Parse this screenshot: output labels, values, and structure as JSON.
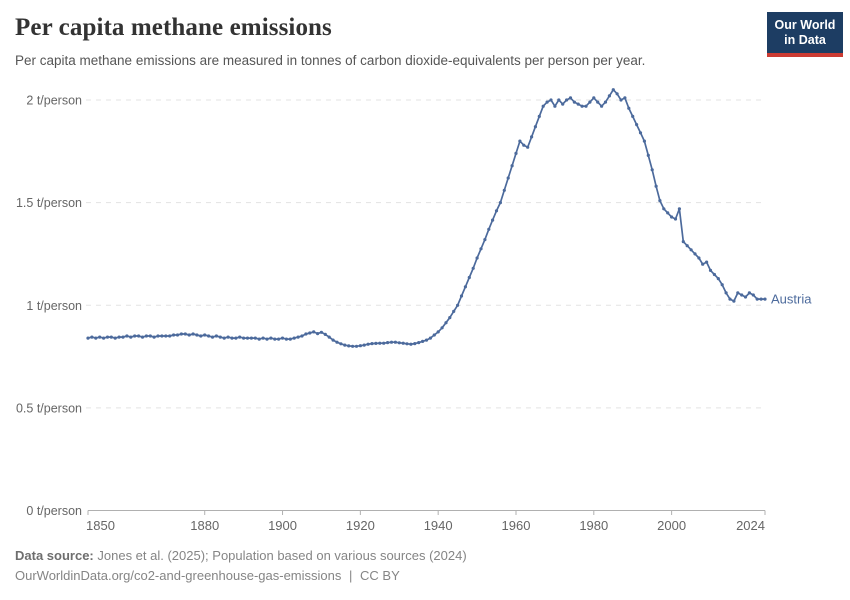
{
  "header": {
    "title": "Per capita methane emissions",
    "subtitle": "Per capita methane emissions are measured in tonnes of carbon dioxide-equivalents per person per year.",
    "logo": {
      "line1": "Our World",
      "line2": "in Data"
    }
  },
  "footer": {
    "source_label": "Data source:",
    "source_text": "Jones et al. (2025); Population based on various sources (2024)",
    "url": "OurWorldinData.org/co2-and-greenhouse-gas-emissions",
    "separator": "|",
    "license": "CC BY"
  },
  "colors": {
    "series": "#4c6a9c",
    "grid": "#e3e3e3",
    "axis": "#b0b0b0",
    "tick_text": "#666666",
    "logo_bg": "#1d3d63",
    "logo_stripe": "#cc3b33"
  },
  "chart_data": {
    "type": "line",
    "title": "Per capita methane emissions",
    "xlabel": "",
    "ylabel": "",
    "unit": "t/person",
    "xlim": [
      1850,
      2024
    ],
    "ylim": [
      0,
      2.1
    ],
    "grid": true,
    "legend_position": "end-of-line",
    "x_ticks": [
      1850,
      1880,
      1900,
      1920,
      1940,
      1960,
      1980,
      2000,
      2024
    ],
    "y_ticks": [
      {
        "value": 0,
        "label": "0 t/person"
      },
      {
        "value": 0.5,
        "label": "0.5 t/person"
      },
      {
        "value": 1,
        "label": "1 t/person"
      },
      {
        "value": 1.5,
        "label": "1.5 t/person"
      },
      {
        "value": 2,
        "label": "2 t/person"
      }
    ],
    "series": [
      {
        "name": "Austria",
        "color": "#4c6a9c",
        "points": [
          [
            1850,
            0.84
          ],
          [
            1851,
            0.845
          ],
          [
            1852,
            0.84
          ],
          [
            1853,
            0.845
          ],
          [
            1854,
            0.84
          ],
          [
            1855,
            0.845
          ],
          [
            1856,
            0.845
          ],
          [
            1857,
            0.84
          ],
          [
            1858,
            0.845
          ],
          [
            1859,
            0.845
          ],
          [
            1860,
            0.85
          ],
          [
            1861,
            0.845
          ],
          [
            1862,
            0.85
          ],
          [
            1863,
            0.85
          ],
          [
            1864,
            0.845
          ],
          [
            1865,
            0.85
          ],
          [
            1866,
            0.85
          ],
          [
            1867,
            0.845
          ],
          [
            1868,
            0.85
          ],
          [
            1869,
            0.85
          ],
          [
            1870,
            0.85
          ],
          [
            1871,
            0.85
          ],
          [
            1872,
            0.855
          ],
          [
            1873,
            0.855
          ],
          [
            1874,
            0.86
          ],
          [
            1875,
            0.86
          ],
          [
            1876,
            0.855
          ],
          [
            1877,
            0.86
          ],
          [
            1878,
            0.855
          ],
          [
            1879,
            0.85
          ],
          [
            1880,
            0.855
          ],
          [
            1881,
            0.85
          ],
          [
            1882,
            0.845
          ],
          [
            1883,
            0.85
          ],
          [
            1884,
            0.845
          ],
          [
            1885,
            0.84
          ],
          [
            1886,
            0.845
          ],
          [
            1887,
            0.84
          ],
          [
            1888,
            0.84
          ],
          [
            1889,
            0.845
          ],
          [
            1890,
            0.84
          ],
          [
            1891,
            0.84
          ],
          [
            1892,
            0.84
          ],
          [
            1893,
            0.84
          ],
          [
            1894,
            0.835
          ],
          [
            1895,
            0.84
          ],
          [
            1896,
            0.835
          ],
          [
            1897,
            0.84
          ],
          [
            1898,
            0.835
          ],
          [
            1899,
            0.835
          ],
          [
            1900,
            0.84
          ],
          [
            1901,
            0.835
          ],
          [
            1902,
            0.835
          ],
          [
            1903,
            0.84
          ],
          [
            1904,
            0.845
          ],
          [
            1905,
            0.85
          ],
          [
            1906,
            0.86
          ],
          [
            1907,
            0.865
          ],
          [
            1908,
            0.87
          ],
          [
            1909,
            0.862
          ],
          [
            1910,
            0.868
          ],
          [
            1911,
            0.858
          ],
          [
            1912,
            0.845
          ],
          [
            1913,
            0.83
          ],
          [
            1914,
            0.82
          ],
          [
            1915,
            0.812
          ],
          [
            1916,
            0.806
          ],
          [
            1917,
            0.802
          ],
          [
            1918,
            0.8
          ],
          [
            1919,
            0.8
          ],
          [
            1920,
            0.803
          ],
          [
            1921,
            0.806
          ],
          [
            1922,
            0.81
          ],
          [
            1923,
            0.813
          ],
          [
            1924,
            0.814
          ],
          [
            1925,
            0.815
          ],
          [
            1926,
            0.815
          ],
          [
            1927,
            0.818
          ],
          [
            1928,
            0.82
          ],
          [
            1929,
            0.82
          ],
          [
            1930,
            0.817
          ],
          [
            1931,
            0.815
          ],
          [
            1932,
            0.812
          ],
          [
            1933,
            0.81
          ],
          [
            1934,
            0.813
          ],
          [
            1935,
            0.818
          ],
          [
            1936,
            0.824
          ],
          [
            1937,
            0.83
          ],
          [
            1938,
            0.84
          ],
          [
            1939,
            0.855
          ],
          [
            1940,
            0.87
          ],
          [
            1941,
            0.89
          ],
          [
            1942,
            0.915
          ],
          [
            1943,
            0.94
          ],
          [
            1944,
            0.97
          ],
          [
            1945,
            1.0
          ],
          [
            1946,
            1.045
          ],
          [
            1947,
            1.09
          ],
          [
            1948,
            1.135
          ],
          [
            1949,
            1.18
          ],
          [
            1950,
            1.23
          ],
          [
            1951,
            1.275
          ],
          [
            1952,
            1.32
          ],
          [
            1953,
            1.37
          ],
          [
            1954,
            1.415
          ],
          [
            1955,
            1.46
          ],
          [
            1956,
            1.5
          ],
          [
            1957,
            1.56
          ],
          [
            1958,
            1.62
          ],
          [
            1959,
            1.68
          ],
          [
            1960,
            1.74
          ],
          [
            1961,
            1.8
          ],
          [
            1962,
            1.78
          ],
          [
            1963,
            1.77
          ],
          [
            1964,
            1.82
          ],
          [
            1965,
            1.87
          ],
          [
            1966,
            1.92
          ],
          [
            1967,
            1.97
          ],
          [
            1968,
            1.99
          ],
          [
            1969,
            2.0
          ],
          [
            1970,
            1.97
          ],
          [
            1971,
            2.0
          ],
          [
            1972,
            1.98
          ],
          [
            1973,
            2.0
          ],
          [
            1974,
            2.01
          ],
          [
            1975,
            1.99
          ],
          [
            1976,
            1.98
          ],
          [
            1977,
            1.97
          ],
          [
            1978,
            1.97
          ],
          [
            1979,
            1.99
          ],
          [
            1980,
            2.01
          ],
          [
            1981,
            1.99
          ],
          [
            1982,
            1.97
          ],
          [
            1983,
            1.99
          ],
          [
            1984,
            2.02
          ],
          [
            1985,
            2.05
          ],
          [
            1986,
            2.03
          ],
          [
            1987,
            2.0
          ],
          [
            1988,
            2.01
          ],
          [
            1989,
            1.96
          ],
          [
            1990,
            1.92
          ],
          [
            1991,
            1.88
          ],
          [
            1992,
            1.84
          ],
          [
            1993,
            1.8
          ],
          [
            1994,
            1.73
          ],
          [
            1995,
            1.66
          ],
          [
            1996,
            1.58
          ],
          [
            1997,
            1.51
          ],
          [
            1998,
            1.47
          ],
          [
            1999,
            1.45
          ],
          [
            2000,
            1.43
          ],
          [
            2001,
            1.42
          ],
          [
            2002,
            1.47
          ],
          [
            2003,
            1.31
          ],
          [
            2004,
            1.29
          ],
          [
            2005,
            1.27
          ],
          [
            2006,
            1.25
          ],
          [
            2007,
            1.23
          ],
          [
            2008,
            1.2
          ],
          [
            2009,
            1.21
          ],
          [
            2010,
            1.17
          ],
          [
            2011,
            1.15
          ],
          [
            2012,
            1.13
          ],
          [
            2013,
            1.1
          ],
          [
            2014,
            1.06
          ],
          [
            2015,
            1.03
          ],
          [
            2016,
            1.02
          ],
          [
            2017,
            1.06
          ],
          [
            2018,
            1.05
          ],
          [
            2019,
            1.04
          ],
          [
            2020,
            1.06
          ],
          [
            2021,
            1.05
          ],
          [
            2022,
            1.03
          ],
          [
            2023,
            1.03
          ],
          [
            2024,
            1.03
          ]
        ]
      }
    ]
  }
}
